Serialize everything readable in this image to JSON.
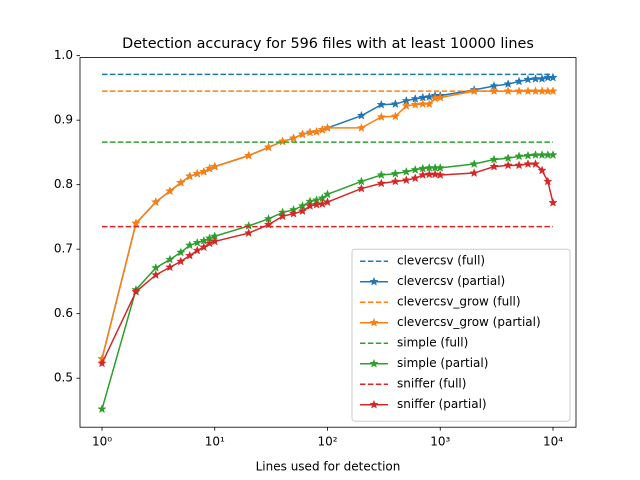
{
  "chart_data": {
    "type": "line",
    "title": "Detection accuracy for 596 files with at least 10000 lines",
    "x_label": "Lines used for detection",
    "xscale": "log",
    "xlim": [
      0.638,
      16000
    ],
    "ylim": [
      0.424,
      0.997
    ],
    "xticks": [
      {
        "value": 1,
        "label": "10⁰"
      },
      {
        "value": 10,
        "label": "10¹"
      },
      {
        "value": 100,
        "label": "10²"
      },
      {
        "value": 1000,
        "label": "10³"
      },
      {
        "value": 10000,
        "label": "10⁴"
      }
    ],
    "yticks": [
      0.5,
      0.6,
      0.7,
      0.8,
      0.9,
      {
        "value": 1,
        "label": "1.0"
      }
    ],
    "legend": "lower right",
    "series": [
      {
        "name": "clevercsv (full)",
        "color": "#1f77b4",
        "style": "dashed",
        "x": [
          1,
          10000
        ],
        "values": [
          0.971,
          0.971
        ]
      },
      {
        "name": "clevercsv (partial)",
        "color": "#1f77b4",
        "style": "solid",
        "marker": "star",
        "x": [
          1,
          2,
          3,
          4,
          5,
          6,
          7,
          8,
          9,
          10,
          20,
          30,
          40,
          50,
          60,
          70,
          80,
          90,
          100,
          200,
          300,
          400,
          500,
          600,
          700,
          800,
          900,
          1000,
          2000,
          3000,
          4000,
          5000,
          6000,
          7000,
          8000,
          9000,
          10000
        ],
        "values": [
          0.53,
          0.74,
          0.773,
          0.79,
          0.803,
          0.813,
          0.817,
          0.82,
          0.825,
          0.828,
          0.845,
          0.858,
          0.867,
          0.872,
          0.878,
          0.881,
          0.882,
          0.885,
          0.888,
          0.907,
          0.924,
          0.925,
          0.93,
          0.933,
          0.935,
          0.936,
          0.938,
          0.938,
          0.947,
          0.953,
          0.956,
          0.96,
          0.963,
          0.964,
          0.964,
          0.966,
          0.966
        ]
      },
      {
        "name": "clevercsv_grow (full)",
        "color": "#ff7f0e",
        "style": "dashed",
        "x": [
          1,
          10000
        ],
        "values": [
          0.945,
          0.945
        ]
      },
      {
        "name": "clevercsv_grow (partial)",
        "color": "#ff7f0e",
        "style": "solid",
        "marker": "star",
        "x": [
          1,
          2,
          3,
          4,
          5,
          6,
          7,
          8,
          9,
          10,
          20,
          30,
          40,
          50,
          60,
          70,
          80,
          90,
          100,
          200,
          300,
          400,
          500,
          600,
          700,
          800,
          900,
          1000,
          2000,
          3000,
          4000,
          5000,
          6000,
          7000,
          8000,
          9000,
          10000
        ],
        "values": [
          0.53,
          0.74,
          0.773,
          0.79,
          0.803,
          0.813,
          0.817,
          0.82,
          0.825,
          0.828,
          0.845,
          0.858,
          0.867,
          0.872,
          0.878,
          0.881,
          0.882,
          0.885,
          0.888,
          0.888,
          0.905,
          0.906,
          0.922,
          0.924,
          0.925,
          0.925,
          0.934,
          0.935,
          0.945,
          0.945,
          0.945,
          0.945,
          0.945,
          0.945,
          0.945,
          0.945,
          0.945
        ]
      },
      {
        "name": "simple (full)",
        "color": "#2ca02c",
        "style": "dashed",
        "x": [
          1,
          10000
        ],
        "values": [
          0.866,
          0.866
        ]
      },
      {
        "name": "simple (partial)",
        "color": "#2ca02c",
        "style": "solid",
        "marker": "star",
        "x": [
          1,
          2,
          3,
          4,
          5,
          6,
          7,
          8,
          9,
          10,
          20,
          30,
          40,
          50,
          60,
          70,
          80,
          90,
          100,
          200,
          300,
          400,
          500,
          600,
          700,
          800,
          900,
          1000,
          2000,
          3000,
          4000,
          5000,
          6000,
          7000,
          8000,
          9000,
          10000
        ],
        "values": [
          0.452,
          0.637,
          0.671,
          0.684,
          0.695,
          0.706,
          0.71,
          0.713,
          0.717,
          0.72,
          0.736,
          0.747,
          0.757,
          0.761,
          0.767,
          0.774,
          0.776,
          0.779,
          0.785,
          0.805,
          0.815,
          0.817,
          0.82,
          0.823,
          0.825,
          0.826,
          0.826,
          0.826,
          0.832,
          0.839,
          0.841,
          0.844,
          0.845,
          0.846,
          0.846,
          0.846,
          0.846
        ]
      },
      {
        "name": "sniffer (full)",
        "color": "#d62728",
        "style": "dashed",
        "x": [
          1,
          10000
        ],
        "values": [
          0.735,
          0.735
        ]
      },
      {
        "name": "sniffer (partial)",
        "color": "#d62728",
        "style": "solid",
        "marker": "star",
        "x": [
          1,
          2,
          3,
          4,
          5,
          6,
          7,
          8,
          9,
          10,
          20,
          30,
          40,
          50,
          60,
          70,
          80,
          90,
          100,
          200,
          300,
          400,
          500,
          600,
          700,
          800,
          900,
          1000,
          2000,
          3000,
          4000,
          5000,
          6000,
          7000,
          8000,
          9000,
          10000
        ],
        "values": [
          0.523,
          0.634,
          0.66,
          0.672,
          0.681,
          0.69,
          0.698,
          0.703,
          0.709,
          0.712,
          0.725,
          0.738,
          0.751,
          0.755,
          0.759,
          0.767,
          0.769,
          0.77,
          0.773,
          0.794,
          0.802,
          0.805,
          0.807,
          0.81,
          0.815,
          0.816,
          0.816,
          0.815,
          0.818,
          0.828,
          0.83,
          0.83,
          0.832,
          0.832,
          0.822,
          0.805,
          0.772
        ]
      }
    ]
  }
}
